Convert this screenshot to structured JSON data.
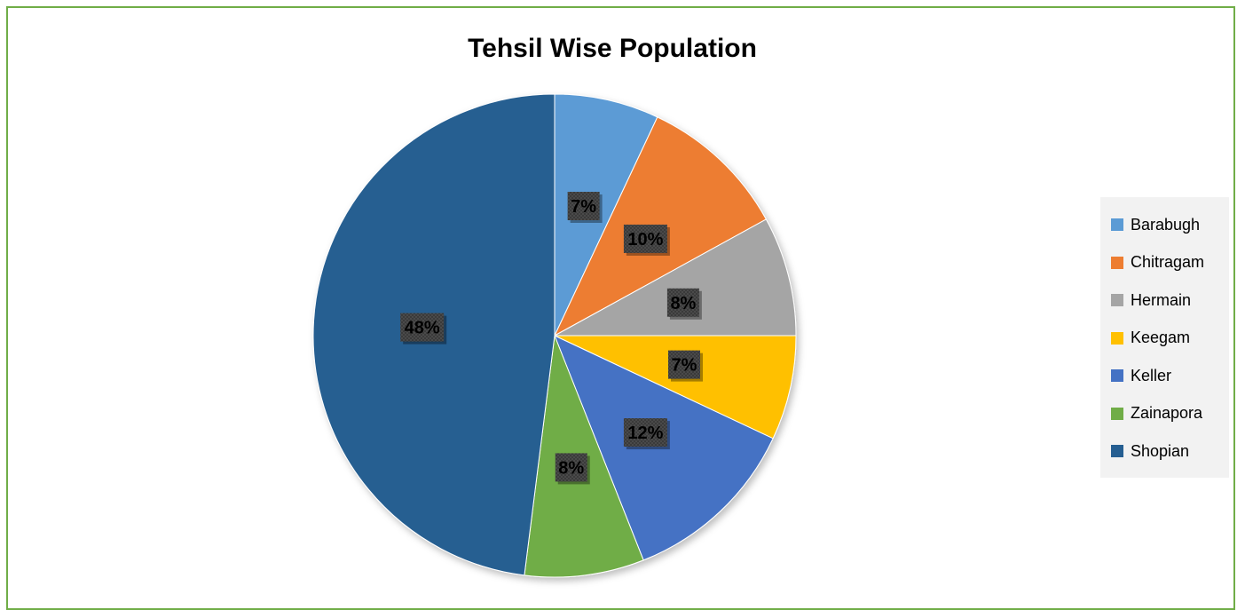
{
  "chart_data": {
    "type": "pie",
    "title": "Tehsil Wise Population",
    "categories": [
      "Barabugh",
      "Chitragam",
      "Hermain",
      "Keegam",
      "Keller",
      "Zainapora",
      "Shopian"
    ],
    "values": [
      7,
      10,
      8,
      7,
      12,
      8,
      48
    ],
    "labels": [
      "7%",
      "10%",
      "8%",
      "7%",
      "12%",
      "8%",
      "48%"
    ],
    "colors": [
      "#5b9bd5",
      "#ed7d31",
      "#a5a5a5",
      "#ffc000",
      "#4472c4",
      "#70ad47",
      "#255e91"
    ],
    "legend_position": "right"
  }
}
